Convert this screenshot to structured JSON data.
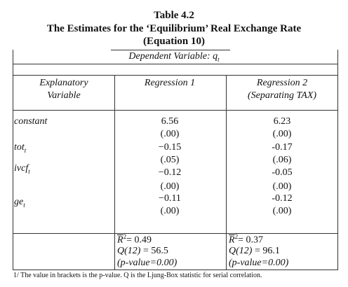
{
  "title": {
    "number": "Table 4.2",
    "main": "The Estimates for the ‘Equilibrium’ Real Exchange Rate",
    "sub": "(Equation 10)"
  },
  "table": {
    "dependent": {
      "text": "Dependent Variable: q",
      "sub": "t"
    },
    "headers": [
      [
        "Explanatory",
        "Variable"
      ],
      [
        "Regression 1"
      ],
      [
        "Regression 2",
        "(Separating TAX)"
      ]
    ],
    "rows": [
      {
        "name": "constant",
        "sub": null,
        "r1": [
          "6.56",
          "(.00)"
        ],
        "r2": [
          "6.23",
          "(.00)"
        ]
      },
      {
        "name": "tot",
        "sub": "t",
        "r1": [
          "−0.15",
          "(.05)"
        ],
        "r2": [
          "-0.17",
          "(.06)"
        ]
      },
      {
        "name": "ivcf",
        "sub": "t",
        "r1": [
          "−0.12",
          "(.00)"
        ],
        "r2": [
          "-0.05",
          "(.00)"
        ]
      },
      {
        "name": "ge",
        "sub": "t",
        "r1": [
          "−0.11",
          "(.00)"
        ],
        "r2": [
          "-0.12",
          "(.00)"
        ]
      }
    ],
    "stats": [
      {
        "r2_symbol": "R",
        "r2_sup": "2",
        "r2_value": "= 0.49",
        "q_symbol": "Q(12)",
        "q_value": "= 56.5",
        "p_value": "(p-value=0.00)"
      },
      {
        "r2_symbol": "R",
        "r2_sup": "2",
        "r2_value": "= 0.37",
        "q_symbol": "Q(12)",
        "q_value": "= 96.1",
        "p_value": "(p-value=0.00)"
      }
    ]
  },
  "footnote": "1/ The value in brackets is the p-value. Q is the Ljung-Box statistic for serial correlation."
}
